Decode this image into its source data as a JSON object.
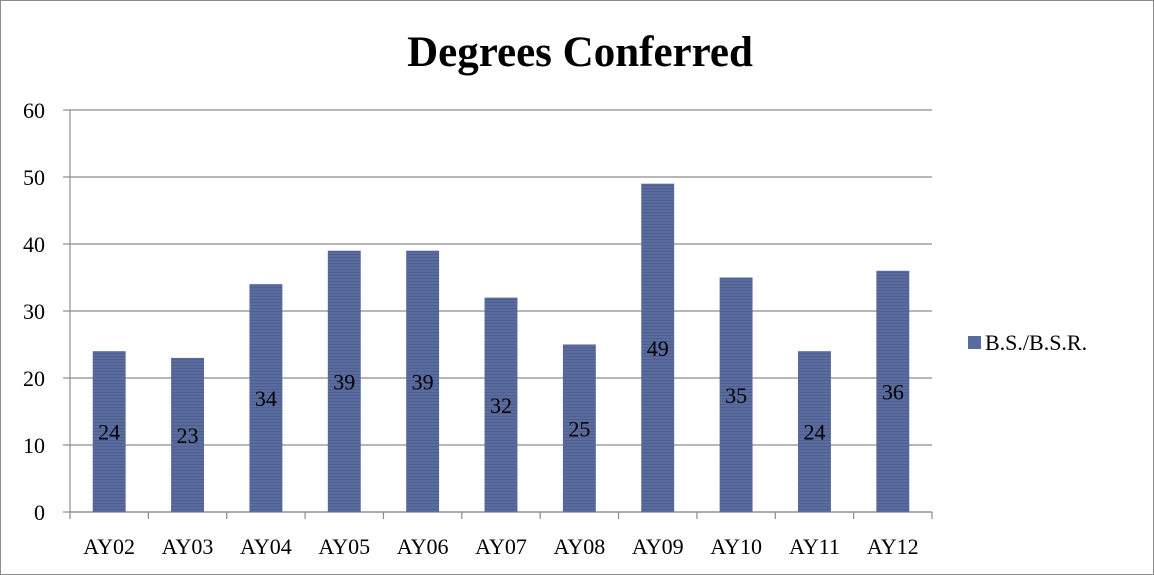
{
  "chart_data": {
    "type": "bar",
    "title": "Degrees Conferred",
    "categories": [
      "AY02",
      "AY03",
      "AY04",
      "AY05",
      "AY06",
      "AY07",
      "AY08",
      "AY09",
      "AY10",
      "AY11",
      "AY12"
    ],
    "series": [
      {
        "name": "B.S./B.S.R.",
        "values": [
          24,
          23,
          34,
          39,
          39,
          32,
          25,
          49,
          35,
          24,
          36
        ],
        "color": "#5a6b9e"
      }
    ],
    "ylim": [
      0,
      60
    ],
    "yticks": [
      0,
      10,
      20,
      30,
      40,
      50,
      60
    ],
    "grid": true,
    "legend": "right",
    "data_labels": true
  }
}
